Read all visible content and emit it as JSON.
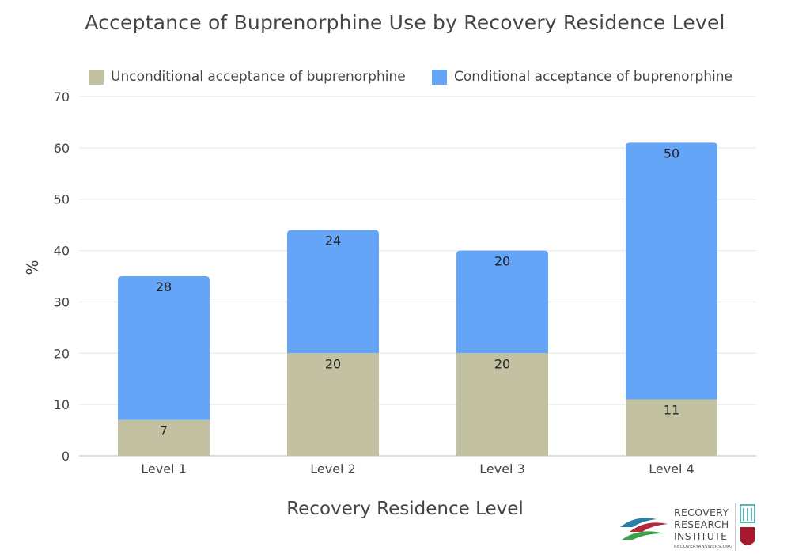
{
  "chart_data": {
    "type": "bar",
    "stacked": true,
    "title": "Acceptance of Buprenorphine Use by Recovery Residence Level",
    "xlabel": "Recovery Residence Level",
    "ylabel": "%",
    "ylim": [
      0,
      70
    ],
    "yticks": [
      0,
      10,
      20,
      30,
      40,
      50,
      60,
      70
    ],
    "grid": true,
    "legend_position": "top",
    "categories": [
      "Level 1",
      "Level 2",
      "Level 3",
      "Level 4"
    ],
    "series": [
      {
        "name": "Unconditional acceptance of buprenorphine",
        "color": "#c2c2a2",
        "values": [
          7,
          20,
          20,
          11
        ]
      },
      {
        "name": "Conditional acceptance of buprenorphine",
        "color": "#64a5f8",
        "values": [
          28,
          24,
          20,
          50
        ]
      }
    ]
  },
  "logo": {
    "line1": "RECOVERY",
    "line2": "RESEARCH",
    "line3": "INSTITUTE",
    "url": "RECOVERYANSWERS.ORG"
  }
}
